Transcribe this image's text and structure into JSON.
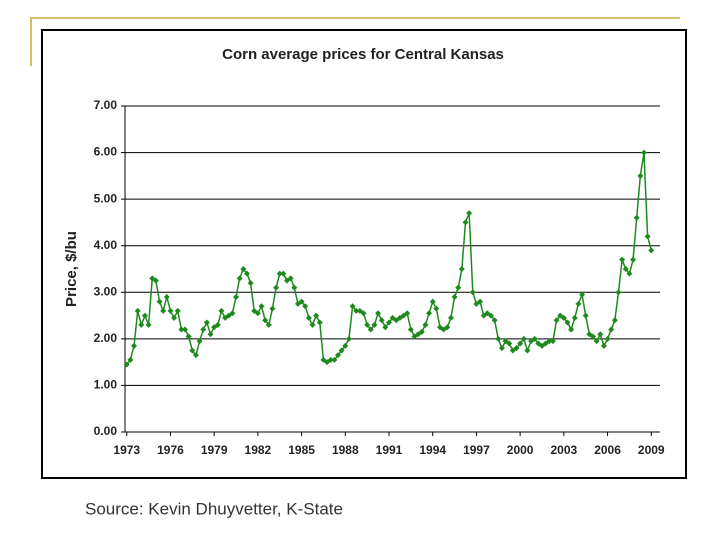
{
  "chart_data": {
    "type": "line",
    "title": "Corn average prices for Central Kansas",
    "y_label": "Price, $/bu",
    "source": "Source: Kevin Dhuyvetter, K-State",
    "xlim": [
      1972.88,
      2009.6
    ],
    "xticks": [
      1973,
      1976,
      1979,
      1982,
      1985,
      1988,
      1991,
      1994,
      1997,
      2000,
      2003,
      2006,
      2009
    ],
    "ylim": [
      0,
      7
    ],
    "yticks": [
      {
        "value": 0,
        "label": "0.00"
      },
      {
        "value": 1,
        "label": "1.00"
      },
      {
        "value": 2,
        "label": "2.00"
      },
      {
        "value": 3,
        "label": "3.00"
      },
      {
        "value": 4,
        "label": "4.00"
      },
      {
        "value": 5,
        "label": "5.00"
      },
      {
        "value": 6,
        "label": "6.00"
      },
      {
        "value": 7,
        "label": "7.00"
      }
    ],
    "grid": true,
    "x": [
      1973.0,
      1973.25,
      1973.5,
      1973.75,
      1974.0,
      1974.25,
      1974.5,
      1974.75,
      1975.0,
      1975.25,
      1975.5,
      1975.75,
      1976.0,
      1976.25,
      1976.5,
      1976.75,
      1977.0,
      1977.25,
      1977.5,
      1977.75,
      1978.0,
      1978.25,
      1978.5,
      1978.75,
      1979.0,
      1979.25,
      1979.5,
      1979.75,
      1980.0,
      1980.25,
      1980.5,
      1980.75,
      1981.0,
      1981.25,
      1981.5,
      1981.75,
      1982.0,
      1982.25,
      1982.5,
      1982.75,
      1983.0,
      1983.25,
      1983.5,
      1983.75,
      1984.0,
      1984.25,
      1984.5,
      1984.75,
      1985.0,
      1985.25,
      1985.5,
      1985.75,
      1986.0,
      1986.25,
      1986.5,
      1986.75,
      1987.0,
      1987.25,
      1987.5,
      1987.75,
      1988.0,
      1988.25,
      1988.5,
      1988.75,
      1989.0,
      1989.25,
      1989.5,
      1989.75,
      1990.0,
      1990.25,
      1990.5,
      1990.75,
      1991.0,
      1991.25,
      1991.5,
      1991.75,
      1992.0,
      1992.25,
      1992.5,
      1992.75,
      1993.0,
      1993.25,
      1993.5,
      1993.75,
      1994.0,
      1994.25,
      1994.5,
      1994.75,
      1995.0,
      1995.25,
      1995.5,
      1995.75,
      1996.0,
      1996.25,
      1996.5,
      1996.75,
      1997.0,
      1997.25,
      1997.5,
      1997.75,
      1998.0,
      1998.25,
      1998.5,
      1998.75,
      1999.0,
      1999.25,
      1999.5,
      1999.75,
      2000.0,
      2000.25,
      2000.5,
      2000.75,
      2001.0,
      2001.25,
      2001.5,
      2001.75,
      2002.0,
      2002.25,
      2002.5,
      2002.75,
      2003.0,
      2003.25,
      2003.5,
      2003.75,
      2004.0,
      2004.25,
      2004.5,
      2004.75,
      2005.0,
      2005.25,
      2005.5,
      2005.75,
      2006.0,
      2006.25,
      2006.5,
      2006.75,
      2007.0,
      2007.25,
      2007.5,
      2007.75,
      2008.0,
      2008.25,
      2008.5,
      2008.75,
      2009.0
    ],
    "series": [
      {
        "color": "#1e8a1e",
        "values": [
          1.45,
          1.55,
          1.85,
          2.6,
          2.3,
          2.5,
          2.3,
          3.3,
          3.25,
          2.8,
          2.6,
          2.9,
          2.6,
          2.45,
          2.6,
          2.2,
          2.2,
          2.05,
          1.75,
          1.65,
          1.95,
          2.2,
          2.35,
          2.1,
          2.25,
          2.3,
          2.6,
          2.45,
          2.5,
          2.55,
          2.9,
          3.3,
          3.5,
          3.4,
          3.2,
          2.6,
          2.55,
          2.7,
          2.4,
          2.3,
          2.65,
          3.1,
          3.4,
          3.4,
          3.25,
          3.3,
          3.1,
          2.75,
          2.8,
          2.7,
          2.45,
          2.3,
          2.5,
          2.35,
          1.55,
          1.5,
          1.55,
          1.55,
          1.65,
          1.75,
          1.85,
          2.0,
          2.7,
          2.6,
          2.6,
          2.55,
          2.3,
          2.2,
          2.3,
          2.55,
          2.4,
          2.25,
          2.35,
          2.45,
          2.4,
          2.45,
          2.5,
          2.55,
          2.2,
          2.05,
          2.1,
          2.15,
          2.3,
          2.55,
          2.8,
          2.65,
          2.25,
          2.2,
          2.25,
          2.45,
          2.9,
          3.1,
          3.5,
          4.5,
          4.7,
          3.0,
          2.75,
          2.8,
          2.5,
          2.55,
          2.5,
          2.4,
          2.0,
          1.8,
          1.95,
          1.9,
          1.75,
          1.8,
          1.9,
          2.0,
          1.75,
          1.95,
          2.0,
          1.9,
          1.85,
          1.9,
          1.95,
          1.95,
          2.4,
          2.5,
          2.45,
          2.35,
          2.2,
          2.45,
          2.75,
          2.95,
          2.5,
          2.1,
          2.05,
          1.95,
          2.1,
          1.85,
          2.0,
          2.2,
          2.4,
          3.0,
          3.7,
          3.5,
          3.4,
          3.7,
          4.6,
          5.5,
          6.0,
          4.2,
          3.9
        ]
      }
    ]
  }
}
